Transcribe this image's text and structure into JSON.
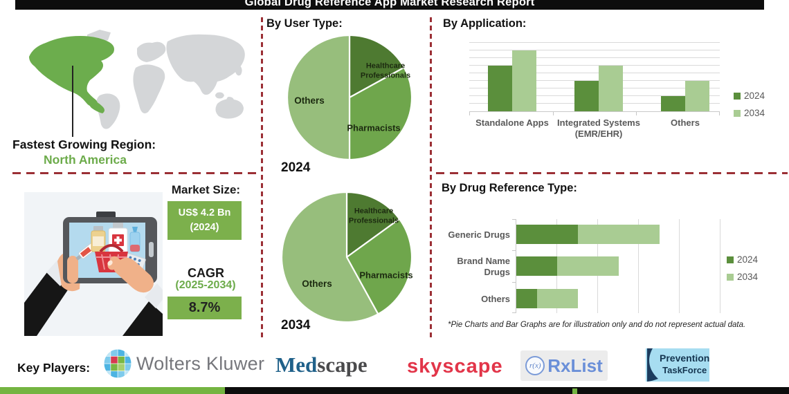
{
  "header": {
    "title": "Global Drug Reference App Market Research Report"
  },
  "fastest_region": {
    "label": "Fastest Growing Region:",
    "value": "North America"
  },
  "market": {
    "size_label": "Market Size:",
    "size_value": "US$ 4.2 Bn",
    "size_year": "(2024)",
    "cagr_label": "CAGR",
    "cagr_period": "(2025-2034)",
    "cagr_value": "8.7%"
  },
  "chart_data": [
    {
      "id": "pie-2024",
      "type": "pie",
      "group_title": "By User Type:",
      "year": "2024",
      "slices": [
        {
          "label": "Healthcare Professionals",
          "value": 17
        },
        {
          "label": "Pharmacists",
          "value": 33
        },
        {
          "label": "Others",
          "value": 50
        }
      ],
      "unit": "percent (illustrative)"
    },
    {
      "id": "pie-2034",
      "type": "pie",
      "year": "2034",
      "slices": [
        {
          "label": "Healthcare Professionals",
          "value": 15
        },
        {
          "label": "Pharmacists",
          "value": 27
        },
        {
          "label": "Others",
          "value": 58
        }
      ],
      "unit": "percent (illustrative)"
    },
    {
      "id": "application",
      "type": "bar",
      "title": "By Application:",
      "categories": [
        "Standalone Apps",
        "Integrated Systems (EMR/EHR)",
        "Others"
      ],
      "category_lines": [
        [
          "Standalone Apps"
        ],
        [
          "Integrated Systems",
          "(EMR/EHR)"
        ],
        [
          "Others"
        ]
      ],
      "series": [
        {
          "name": "2024",
          "values": [
            6,
            4,
            2
          ]
        },
        {
          "name": "2034",
          "values": [
            8,
            6,
            4
          ]
        }
      ],
      "ylim": [
        0,
        9
      ],
      "grid": true,
      "legend_position": "right",
      "unit": "relative (illustrative)"
    },
    {
      "id": "drug-reference",
      "type": "bar-horizontal-stacked",
      "title": "By Drug Reference Type:",
      "categories": [
        "Generic Drugs",
        "Brand Name Drugs",
        "Others"
      ],
      "category_lines": [
        [
          "Generic Drugs"
        ],
        [
          "Brand Name",
          "Drugs"
        ],
        [
          "Others"
        ]
      ],
      "series": [
        {
          "name": "2024",
          "values": [
            1.5,
            1,
            0.5
          ]
        },
        {
          "name": "2034",
          "values": [
            2,
            1.5,
            1
          ]
        }
      ],
      "xlim": [
        0,
        5
      ],
      "grid": true,
      "legend_position": "right",
      "unit": "relative (illustrative)"
    }
  ],
  "footnote": "*Pie Charts and Bar Graphs are for illustration only and do not represent actual data.",
  "key_players": {
    "label": "Key Players:",
    "players": [
      {
        "name": "Wolters Kluwer"
      },
      {
        "name": "Medscape",
        "part1": "Med",
        "part2": "scape"
      },
      {
        "name": "Skyscape",
        "text": "skyscape"
      },
      {
        "name": "RxList",
        "icon_text": "r(x)",
        "text": "RxList"
      },
      {
        "name": "Prevention TaskForce",
        "line1": "Prevention",
        "line2": "TaskForce"
      }
    ]
  },
  "colors": {
    "banner": "#0d0d0d",
    "accent_green_box": "#7cb04c",
    "green_text": "#6cab4a",
    "dashed_red": "#9b2f35",
    "pie_dark": "#4e7a31",
    "pie_mid": "#6fa64c",
    "pie_light": "#97be7c",
    "bar_dark": "#5b8f3c",
    "bar_light": "#a9cc93",
    "map_highlight": "#6cad4d",
    "map_gray": "#d4d6d8",
    "bottom_bar_green": "#74b441",
    "label_gray": "#595959"
  }
}
